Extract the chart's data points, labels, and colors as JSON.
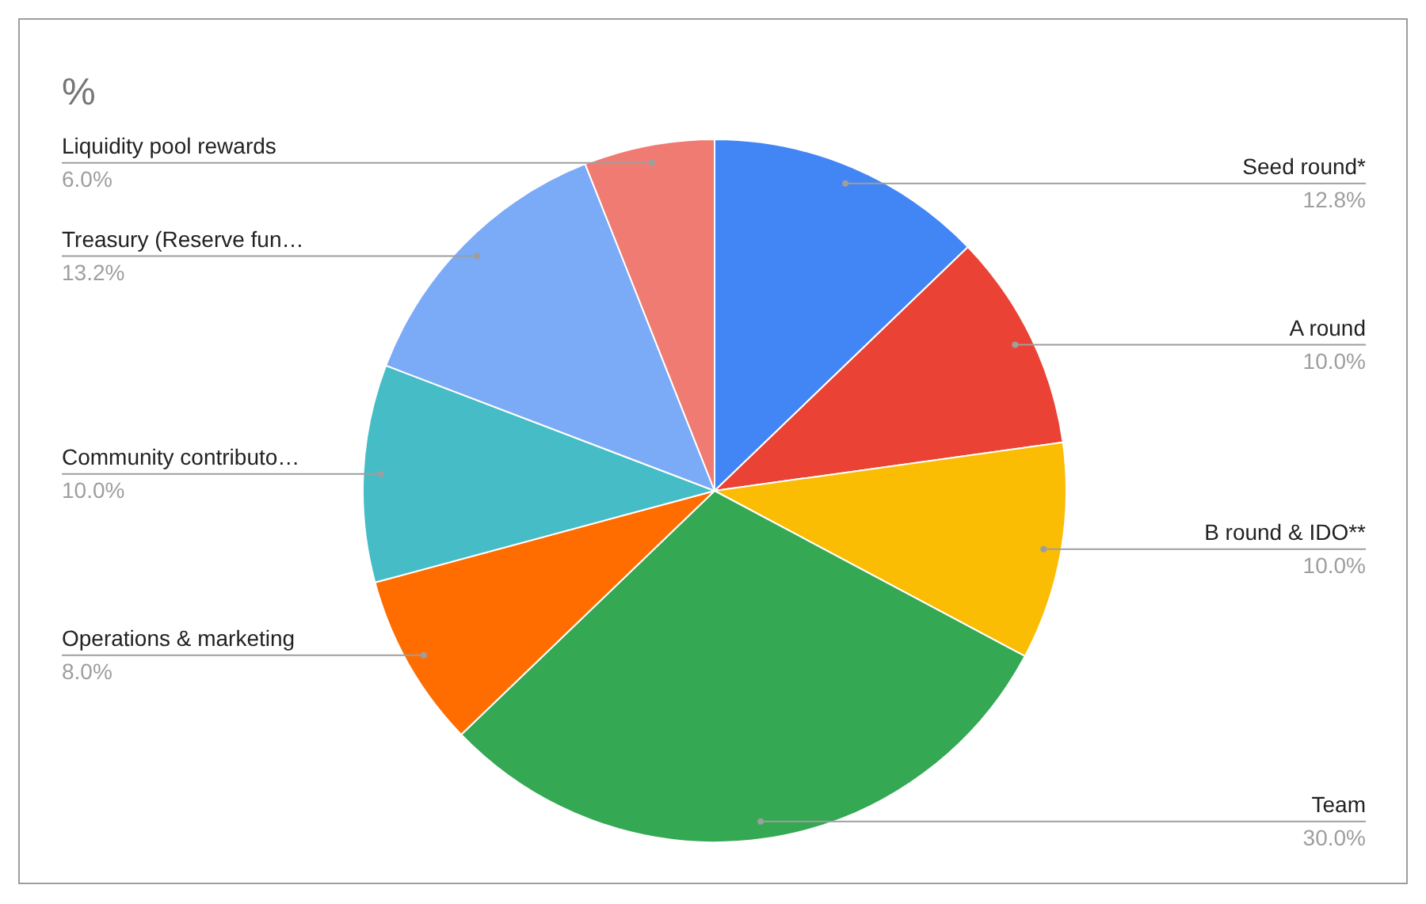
{
  "chart_data": {
    "type": "pie",
    "title": "%",
    "categories": [
      "Seed round*",
      "A round",
      "B round & IDO**",
      "Team",
      "Operations & marketing",
      "Community contributo…",
      "Treasury (Reserve fun…",
      "Liquidity pool rewards"
    ],
    "values": [
      12.8,
      10,
      10,
      30,
      8,
      10,
      13.2,
      6
    ],
    "colors": [
      "#4285f4",
      "#ea4335",
      "#fbbc04",
      "#34a853",
      "#ff6d01",
      "#46bdc6",
      "#7baaf7",
      "#f07b72"
    ],
    "value_labels": [
      "12.8%",
      "10.0%",
      "10.0%",
      "30.0%",
      "8.0%",
      "10.0%",
      "13.2%",
      "6.0%"
    ]
  }
}
